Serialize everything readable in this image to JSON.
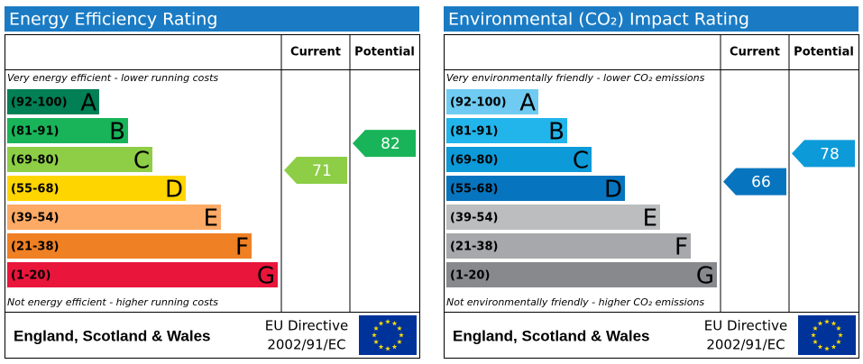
{
  "panels": [
    {
      "title": "Energy Efficiency Rating",
      "headers": [
        "Current",
        "Potential"
      ],
      "top_note": "Very energy efficient - lower running costs",
      "bottom_note": "Not energy efficient - higher running costs",
      "bands": [
        {
          "range": "(92-100)",
          "letter": "A",
          "color": "#008054"
        },
        {
          "range": "(81-91)",
          "letter": "B",
          "color": "#19b459"
        },
        {
          "range": "(69-80)",
          "letter": "C",
          "color": "#8dce46"
        },
        {
          "range": "(55-68)",
          "letter": "D",
          "color": "#ffd500"
        },
        {
          "range": "(39-54)",
          "letter": "E",
          "color": "#fcaa65"
        },
        {
          "range": "(21-38)",
          "letter": "F",
          "color": "#ef8023"
        },
        {
          "range": "(1-20)",
          "letter": "G",
          "color": "#e9153b"
        }
      ],
      "current": 71,
      "potential": 82,
      "footer": {
        "region": "England, Scotland & Wales",
        "directive": [
          "EU Directive",
          "2002/91/EC"
        ]
      }
    },
    {
      "title": "Environmental (CO₂) Impact Rating",
      "headers": [
        "Current",
        "Potential"
      ],
      "top_note": "Very environmentally friendly - lower CO₂ emissions",
      "bottom_note": "Not environmentally friendly - higher CO₂ emissions",
      "bands": [
        {
          "range": "(92-100)",
          "letter": "A",
          "color": "#6fcbf2"
        },
        {
          "range": "(81-91)",
          "letter": "B",
          "color": "#22b5eb"
        },
        {
          "range": "(69-80)",
          "letter": "C",
          "color": "#0c9ad8"
        },
        {
          "range": "(55-68)",
          "letter": "D",
          "color": "#0774bf"
        },
        {
          "range": "(39-54)",
          "letter": "E",
          "color": "#bbbdbf"
        },
        {
          "range": "(21-38)",
          "letter": "F",
          "color": "#a6a8ab"
        },
        {
          "range": "(1-20)",
          "letter": "G",
          "color": "#88898c"
        }
      ],
      "current": 66,
      "potential": 78,
      "footer": {
        "region": "England, Scotland & Wales",
        "directive": [
          "EU Directive",
          "2002/91/EC"
        ]
      }
    }
  ]
}
